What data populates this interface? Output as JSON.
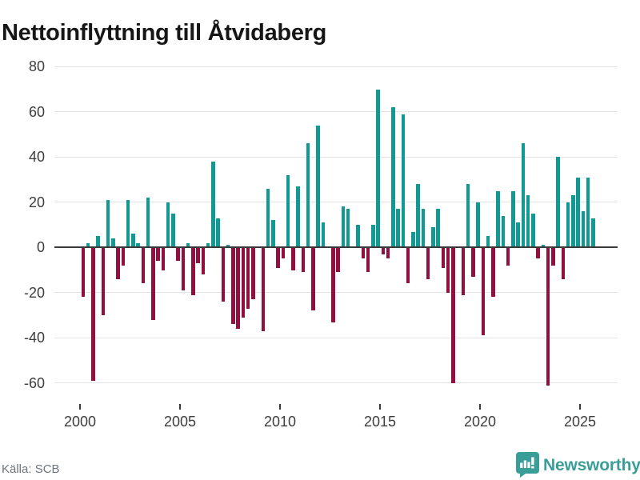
{
  "title": "Nettoinflyttning till Åtvidaberg",
  "footer": {
    "source": "Källa: SCB",
    "brand": "Newsworthy"
  },
  "colors": {
    "positive_bar": "#119a93",
    "negative_bar": "#930f3f",
    "grid_line": "#e4e4e4",
    "zero_line": "#3a3a3a",
    "axis_text": "#3d3d3d",
    "title_text": "#161616",
    "source_text": "#6e7480",
    "brand_teal": "#3a9e98",
    "background": "#ffffff"
  },
  "chart_data": {
    "type": "bar",
    "title": "Nettoinflyttning till Åtvidaberg",
    "frequency": "quarterly",
    "start": "2000-Q1",
    "end": "2025-Q3",
    "values": [
      -22,
      2,
      -59,
      5,
      -30,
      21,
      4,
      -14,
      -8,
      21,
      6,
      2,
      -16,
      22,
      -32,
      -6,
      -10,
      20,
      15,
      -6,
      -19,
      2,
      -21,
      -7,
      -12,
      2,
      38,
      13,
      -24,
      1,
      -34,
      -36,
      -31,
      -27,
      -23,
      0,
      -37,
      26,
      12,
      -9,
      -5,
      32,
      -10,
      27,
      -11,
      46,
      -28,
      54,
      11,
      0,
      -33,
      -11,
      18,
      17,
      0,
      10,
      -5,
      -11,
      10,
      70,
      -3,
      -5,
      62,
      17,
      59,
      -16,
      7,
      28,
      17,
      -14,
      9,
      17,
      -9,
      -20,
      -60,
      0,
      -21,
      28,
      -13,
      20,
      -39,
      5,
      -22,
      25,
      14,
      -8,
      25,
      11,
      46,
      23,
      15,
      -5,
      1,
      -61,
      -8,
      40,
      -14,
      20,
      23,
      31,
      16,
      31,
      13
    ],
    "yticks": [
      80,
      60,
      40,
      20,
      0,
      -20,
      -40,
      -60
    ],
    "xticks": [
      2000,
      2005,
      2010,
      2015,
      2020,
      2025
    ],
    "ylim": [
      -65,
      85
    ],
    "grid": true,
    "legend": false
  }
}
